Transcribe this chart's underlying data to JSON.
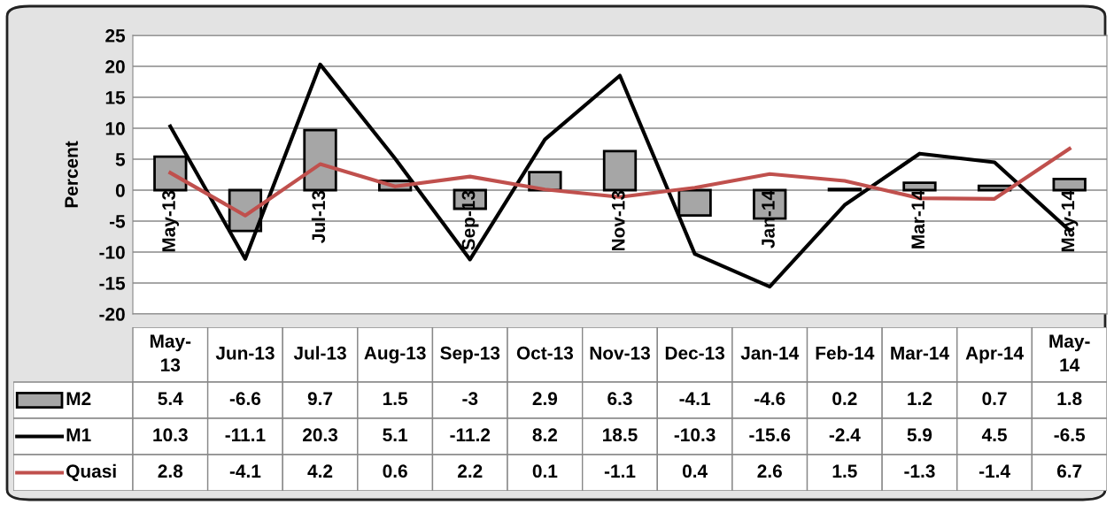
{
  "chart_data": {
    "type": "bar",
    "ylabel": "Percent",
    "categories": [
      "May-13",
      "Jun-13",
      "Jul-13",
      "Aug-13",
      "Sep-13",
      "Oct-13",
      "Nov-13",
      "Dec-13",
      "Jan-14",
      "Feb-14",
      "Mar-14",
      "Apr-14",
      "May-14"
    ],
    "series": [
      {
        "name": "M2",
        "color": "#a6a6a6",
        "values": [
          5.4,
          -6.6,
          9.7,
          1.5,
          -3,
          2.9,
          6.3,
          -4.1,
          -4.6,
          0.2,
          1.2,
          0.7,
          1.8
        ]
      },
      {
        "name": "M1",
        "type": "line",
        "color": "#000000",
        "values": [
          10.3,
          -11.1,
          20.3,
          5.1,
          -11.2,
          8.2,
          18.5,
          -10.3,
          -15.6,
          -2.4,
          5.9,
          4.5,
          -6.5
        ]
      },
      {
        "name": "Quasi",
        "type": "line",
        "color": "#c0504d",
        "values": [
          2.8,
          -4.1,
          4.2,
          0.6,
          2.2,
          0.1,
          -1.1,
          0.4,
          2.6,
          1.5,
          -1.3,
          -1.4,
          6.7
        ]
      }
    ],
    "ylim": [
      -20,
      25
    ],
    "yticks": [
      -20,
      -15,
      -10,
      -5,
      0,
      5,
      10,
      15,
      20,
      25
    ],
    "grid": "y",
    "legend": "left",
    "data_labels": true,
    "marker": "none",
    "line_style": "solid"
  }
}
